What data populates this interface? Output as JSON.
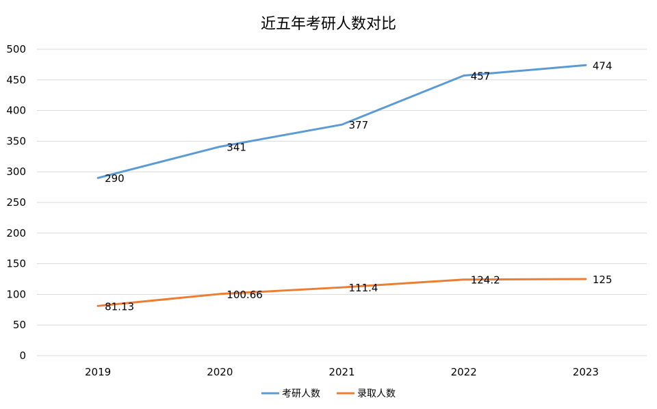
{
  "chart_data": {
    "type": "line",
    "title": "近五年考研人数对比",
    "xlabel": "",
    "ylabel": "",
    "categories": [
      "2019",
      "2020",
      "2021",
      "2022",
      "2023"
    ],
    "ylim": [
      0,
      500
    ],
    "yticks": [
      0,
      50,
      100,
      150,
      200,
      250,
      300,
      350,
      400,
      450,
      500
    ],
    "grid": true,
    "legend_position": "bottom",
    "series": [
      {
        "name": "考研人数",
        "values": [
          290,
          341,
          377,
          457,
          474
        ],
        "labels": [
          "290",
          "341",
          "377",
          "457",
          "474"
        ],
        "color": "#5b9bd5"
      },
      {
        "name": "录取人数",
        "values": [
          81.13,
          100.66,
          111.4,
          124.2,
          125
        ],
        "labels": [
          "81.13",
          "100.66",
          "111.4",
          "124.2",
          "125"
        ],
        "color": "#ed7d31"
      }
    ]
  }
}
